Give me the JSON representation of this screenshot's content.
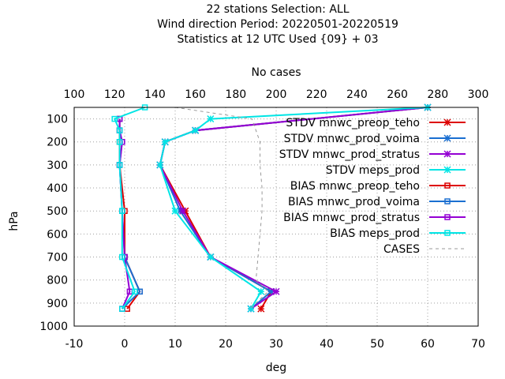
{
  "chart_data": {
    "type": "line",
    "title_lines": [
      "22 stations Selection: ALL",
      "Wind direction  Period: 20220501-20220519",
      "Statistics at 12 UTC  Used {09} + 03"
    ],
    "xlabel": "deg",
    "ylabel": "hPa",
    "x2label": "No cases",
    "xlim": [
      -10,
      70
    ],
    "x_ticks": [
      "-10",
      "0",
      "10",
      "20",
      "30",
      "40",
      "50",
      "60",
      "70"
    ],
    "ylim": [
      1000,
      50
    ],
    "y_inverted": true,
    "y_ticks": [
      "100",
      "200",
      "300",
      "400",
      "500",
      "600",
      "700",
      "800",
      "900",
      "1000"
    ],
    "x2lim": [
      100,
      300
    ],
    "x2_ticks": [
      "100",
      "120",
      "140",
      "160",
      "180",
      "200",
      "220",
      "240",
      "260",
      "280",
      "300"
    ],
    "grid": true,
    "legend_position": "top-right",
    "series": [
      {
        "name": "STDV mnwc_preop_teho",
        "color": "#dd0000",
        "marker": "star",
        "axis": "x1",
        "points": [
          [
            60,
            50
          ],
          [
            14,
            150
          ],
          [
            8,
            200
          ],
          [
            7,
            300
          ],
          [
            12,
            500
          ],
          [
            17,
            700
          ],
          [
            29,
            850
          ],
          [
            27,
            925
          ]
        ]
      },
      {
        "name": "STDV mnwc_prod_voima",
        "color": "#1a6fd1",
        "marker": "star",
        "axis": "x1",
        "points": [
          [
            60,
            50
          ],
          [
            14,
            150
          ],
          [
            8,
            200
          ],
          [
            7,
            300
          ],
          [
            11,
            500
          ],
          [
            17,
            700
          ],
          [
            29,
            850
          ],
          [
            25,
            925
          ]
        ]
      },
      {
        "name": "STDV mnwc_prod_stratus",
        "color": "#9400d3",
        "marker": "star",
        "axis": "x1",
        "points": [
          [
            60,
            50
          ],
          [
            14,
            150
          ],
          [
            8,
            200
          ],
          [
            7,
            300
          ],
          [
            11.5,
            500
          ],
          [
            17,
            700
          ],
          [
            30,
            850
          ],
          [
            25,
            925
          ]
        ]
      },
      {
        "name": "STDV meps_prod",
        "color": "#00e5e5",
        "marker": "star",
        "axis": "x1",
        "points": [
          [
            60,
            50
          ],
          [
            17,
            100
          ],
          [
            14,
            150
          ],
          [
            8,
            200
          ],
          [
            7,
            300
          ],
          [
            10,
            500
          ],
          [
            17,
            700
          ],
          [
            27,
            850
          ],
          [
            25,
            925
          ]
        ]
      },
      {
        "name": "BIAS mnwc_preop_teho",
        "color": "#dd0000",
        "marker": "square",
        "axis": "x1",
        "points": [
          [
            -1,
            100
          ],
          [
            -1,
            150
          ],
          [
            -1,
            200
          ],
          [
            -1,
            300
          ],
          [
            0,
            500
          ],
          [
            0,
            700
          ],
          [
            3,
            850
          ],
          [
            0.5,
            925
          ]
        ]
      },
      {
        "name": "BIAS mnwc_prod_voima",
        "color": "#1a6fd1",
        "marker": "square",
        "axis": "x1",
        "points": [
          [
            -1,
            100
          ],
          [
            -1,
            150
          ],
          [
            -0.5,
            200
          ],
          [
            -1,
            300
          ],
          [
            -0.5,
            500
          ],
          [
            0,
            700
          ],
          [
            3,
            850
          ],
          [
            -0.5,
            925
          ]
        ]
      },
      {
        "name": "BIAS mnwc_prod_stratus",
        "color": "#9400d3",
        "marker": "square",
        "axis": "x1",
        "points": [
          [
            -1,
            100
          ],
          [
            -1,
            150
          ],
          [
            -0.5,
            200
          ],
          [
            -1,
            300
          ],
          [
            -0.5,
            500
          ],
          [
            0,
            700
          ],
          [
            1,
            850
          ],
          [
            -0.5,
            925
          ]
        ]
      },
      {
        "name": "BIAS meps_prod",
        "color": "#00e5e5",
        "marker": "square",
        "axis": "x1",
        "points": [
          [
            4,
            50
          ],
          [
            -2,
            100
          ],
          [
            -1,
            150
          ],
          [
            -1,
            200
          ],
          [
            -1,
            300
          ],
          [
            -0.5,
            500
          ],
          [
            -0.5,
            700
          ],
          [
            2,
            850
          ],
          [
            -0.5,
            925
          ]
        ]
      },
      {
        "name": "CASES",
        "color": "#999999",
        "marker": "none",
        "dashed": true,
        "axis": "x2",
        "points": [
          [
            150,
            50
          ],
          [
            188,
            100
          ],
          [
            190,
            150
          ],
          [
            192,
            200
          ],
          [
            192,
            300
          ],
          [
            193,
            400
          ],
          [
            193,
            500
          ],
          [
            192,
            600
          ],
          [
            191,
            700
          ],
          [
            190,
            800
          ],
          [
            196,
            850
          ],
          [
            187,
            925
          ]
        ]
      }
    ]
  }
}
